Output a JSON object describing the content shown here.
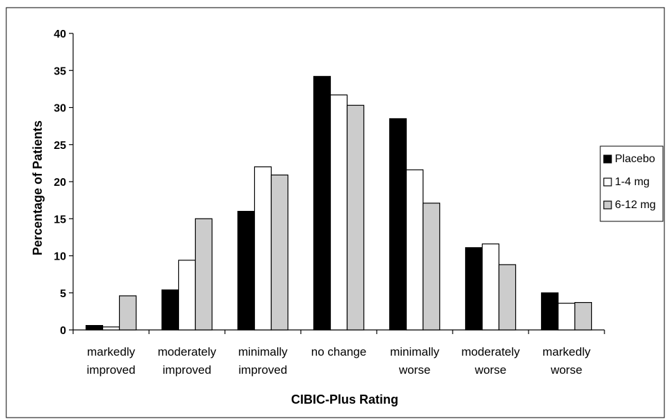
{
  "chart_data": {
    "type": "bar",
    "title": "",
    "xlabel": "CIBIC-Plus Rating",
    "ylabel": "Percentage of Patients",
    "ylim": [
      0,
      40
    ],
    "yticks": [
      0,
      5,
      10,
      15,
      20,
      25,
      30,
      35,
      40
    ],
    "grid": false,
    "legend_position": "right",
    "categories": [
      [
        "markedly",
        "improved"
      ],
      [
        "moderately",
        "improved"
      ],
      [
        "minimally",
        "improved"
      ],
      [
        "no change"
      ],
      [
        "minimally",
        "worse"
      ],
      [
        "moderately",
        "worse"
      ],
      [
        "markedly",
        "worse"
      ]
    ],
    "series": [
      {
        "name": "Placebo",
        "color": "#000000",
        "values": [
          0.6,
          5.4,
          16.0,
          34.2,
          28.5,
          11.1,
          5.0
        ]
      },
      {
        "name": "1-4 mg",
        "color": "#ffffff",
        "values": [
          0.4,
          9.4,
          22.0,
          31.7,
          21.6,
          11.6,
          3.6
        ]
      },
      {
        "name": "6-12 mg",
        "color": "#cccccc",
        "values": [
          4.6,
          15.0,
          20.9,
          30.3,
          17.1,
          8.8,
          3.7
        ]
      }
    ]
  }
}
